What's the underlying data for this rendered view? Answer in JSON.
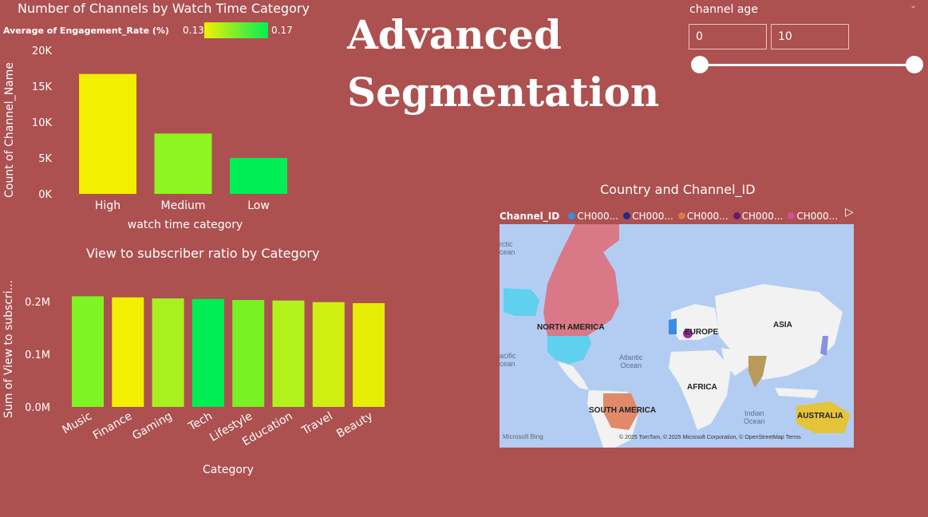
{
  "main_title_line1": "Advanced",
  "main_title_line2": "Segmentation",
  "slicer": {
    "label": "channel age",
    "min_value": "0",
    "max_value": "10",
    "range": [
      0,
      10
    ]
  },
  "map": {
    "title": "Country and Channel_ID",
    "legend_label": "Channel_ID",
    "legend_items": [
      {
        "name": "CH000...",
        "color": "#3b8be0"
      },
      {
        "name": "CH000...",
        "color": "#1f2a8a"
      },
      {
        "name": "CH000...",
        "color": "#e0784a"
      },
      {
        "name": "CH000...",
        "color": "#6b1b6b"
      },
      {
        "name": "CH000...",
        "color": "#d0509a"
      }
    ],
    "continent_labels": {
      "north_america": "NORTH AMERICA",
      "europe": "EUROPE",
      "asia": "ASIA",
      "africa": "AFRICA",
      "south_america": "SOUTH AMERICA",
      "australia": "AUSTRALIA"
    },
    "ocean_labels": {
      "arctic": "rctic\ncean",
      "pacific": "acific\ncean",
      "atlantic": "Atlantic\nOcean",
      "indian": "Indian\nOcean"
    },
    "logo_text": "Microsoft Bing",
    "attribution": "© 2025 TomTom, © 2025 Microsoft Corporation, © OpenStreetMap  Terms",
    "colors": {
      "ocean": "#b3cdf2",
      "land": "#f2f2f2",
      "canada": "#d97887",
      "usa": "#5fd0ee",
      "brazil": "#e08a6a",
      "india": "#b89a5a",
      "australia": "#e3c43a"
    }
  },
  "chart_data": [
    {
      "type": "bar",
      "title": "Number of Channels by Watch Time Category",
      "legend_title": "Average of Engagement_Rate (%)",
      "legend_min": "0.13",
      "legend_max": "0.17",
      "color_scale": [
        "#f5f000",
        "#00ee55"
      ],
      "categories": [
        "High",
        "Medium",
        "Low"
      ],
      "values": [
        16700,
        8400,
        5000
      ],
      "bar_colors": [
        "#f2f000",
        "#8ef522",
        "#00ee55"
      ],
      "xlabel": "watch time category",
      "ylabel": "Count of Channel_Name",
      "ylim": [
        0,
        20000
      ],
      "yticks": [
        0,
        5000,
        10000,
        15000,
        20000
      ],
      "ytick_labels": [
        "0K",
        "5K",
        "10K",
        "15K",
        "20K"
      ]
    },
    {
      "type": "bar",
      "title": "View to subscriber ratio by Category",
      "categories": [
        "Music",
        "Finance",
        "Gaming",
        "Tech",
        "Lifestyle",
        "Education",
        "Travel",
        "Beauty"
      ],
      "values": [
        210000,
        208000,
        206000,
        205000,
        203000,
        202000,
        199000,
        197000
      ],
      "bar_colors": [
        "#7ef522",
        "#f2f000",
        "#a8f020",
        "#00ee55",
        "#78f222",
        "#b2f21c",
        "#cdf012",
        "#e4ef05"
      ],
      "xlabel": "Category",
      "ylabel": "Sum of View to subscri...",
      "ylim": [
        0,
        250000
      ],
      "yticks": [
        0,
        100000,
        200000
      ],
      "ytick_labels": [
        "0.0M",
        "0.1M",
        "0.2M"
      ]
    }
  ]
}
